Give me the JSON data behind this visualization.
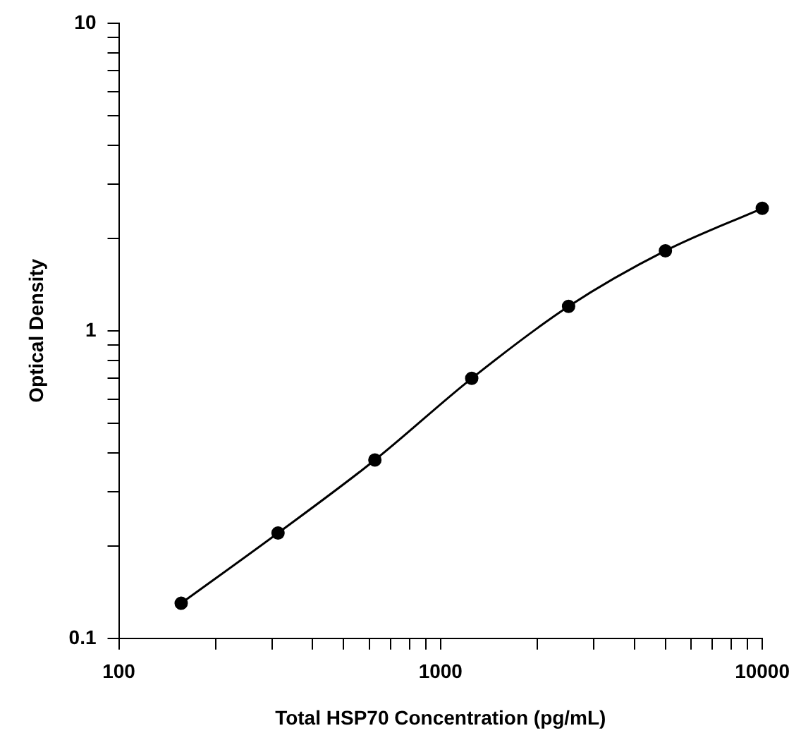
{
  "chart_data": {
    "type": "line",
    "xlabel": "Total HSP70 Concentration (pg/mL)",
    "ylabel": "Optical Density",
    "x": [
      156.25,
      312.5,
      625,
      1250,
      2500,
      5000,
      10000
    ],
    "series": [
      {
        "color": "#000000",
        "values": [
          0.13,
          0.22,
          0.38,
          0.7,
          1.2,
          1.82,
          2.5
        ]
      }
    ],
    "log": "xy",
    "marker": "circle",
    "line_style": "solid",
    "grid": false,
    "legend": false,
    "xlim": [
      100,
      10000
    ],
    "ylim": [
      0.1,
      10
    ],
    "xticks": [
      100,
      {
        "value": 200,
        "label": null
      },
      {
        "value": 300,
        "label": null
      },
      {
        "value": 400,
        "label": null
      },
      {
        "value": 500,
        "label": null
      },
      {
        "value": 600,
        "label": null
      },
      {
        "value": 700,
        "label": null
      },
      {
        "value": 800,
        "label": null
      },
      {
        "value": 900,
        "label": null
      },
      1000,
      {
        "value": 2000,
        "label": null
      },
      {
        "value": 3000,
        "label": null
      },
      {
        "value": 4000,
        "label": null
      },
      {
        "value": 5000,
        "label": null
      },
      {
        "value": 6000,
        "label": null
      },
      {
        "value": 7000,
        "label": null
      },
      {
        "value": 8000,
        "label": null
      },
      {
        "value": 9000,
        "label": null
      },
      10000
    ],
    "yticks": [
      0.1,
      {
        "value": 0.2,
        "label": null
      },
      {
        "value": 0.3,
        "label": null
      },
      {
        "value": 0.4,
        "label": null
      },
      {
        "value": 0.5,
        "label": null
      },
      {
        "value": 0.6,
        "label": null
      },
      {
        "value": 0.7,
        "label": null
      },
      {
        "value": 0.8,
        "label": null
      },
      {
        "value": 0.9,
        "label": null
      },
      1,
      {
        "value": 2,
        "label": null
      },
      {
        "value": 3,
        "label": null
      },
      {
        "value": 4,
        "label": null
      },
      {
        "value": 5,
        "label": null
      },
      {
        "value": 6,
        "label": null
      },
      {
        "value": 7,
        "label": null
      },
      {
        "value": 8,
        "label": null
      },
      {
        "value": 9,
        "label": null
      },
      10
    ]
  }
}
